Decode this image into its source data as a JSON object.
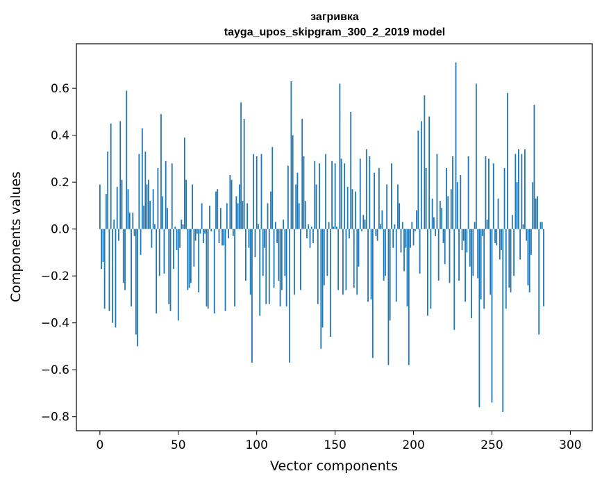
{
  "chart_data": {
    "type": "bar",
    "title_line1": "загривка",
    "title_line2": "tayga_upos_skipgram_300_2_2019 model",
    "xlabel": "Vector components",
    "ylabel": "Components values",
    "xlim": [
      -15,
      314
    ],
    "ylim": [
      -0.86,
      0.79
    ],
    "x_ticks": [
      0,
      50,
      100,
      150,
      200,
      250,
      300
    ],
    "x_tick_labels": [
      "0",
      "50",
      "100",
      "150",
      "200",
      "250",
      "300"
    ],
    "y_ticks": [
      -0.8,
      -0.6,
      -0.4,
      -0.2,
      0.0,
      0.2,
      0.4,
      0.6
    ],
    "y_tick_labels": [
      "−0.8",
      "−0.6",
      "−0.4",
      "−0.2",
      "0.0",
      "0.2",
      "0.4",
      "0.6"
    ],
    "bar_color": "#1f77b4",
    "values": [
      0.19,
      -0.17,
      -0.14,
      -0.34,
      0.15,
      0.33,
      -0.35,
      0.45,
      -0.4,
      0.04,
      -0.42,
      0.18,
      -0.05,
      0.46,
      0.21,
      -0.23,
      -0.26,
      0.59,
      0.17,
      0.07,
      -0.33,
      0.07,
      -0.03,
      -0.45,
      -0.5,
      0.32,
      -0.11,
      0.43,
      0.1,
      0.33,
      0.19,
      0.21,
      0.12,
      -0.08,
      0.17,
      0.02,
      -0.36,
      0.26,
      -0.2,
      0.49,
      0.14,
      -0.19,
      0.29,
      0.09,
      -0.32,
      -0.35,
      0.28,
      -0.17,
      0.01,
      -0.09,
      -0.39,
      -0.08,
      0.04,
      0.02,
      0.39,
      0.21,
      -0.26,
      -0.25,
      -0.23,
      0.19,
      -0.16,
      -0.05,
      -0.02,
      -0.27,
      -0.02,
      0.11,
      -0.06,
      -0.02,
      -0.33,
      -0.34,
      0.1,
      -0.01,
      0.0,
      -0.36,
      0.16,
      0.17,
      -0.06,
      0.09,
      -0.07,
      -0.07,
      -0.35,
      0.11,
      -0.04,
      0.23,
      0.21,
      -0.03,
      -0.33,
      0.14,
      0.11,
      0.19,
      0.54,
      0.12,
      0.47,
      -0.22,
      0.11,
      -0.08,
      -0.28,
      -0.57,
      0.32,
      -0.12,
      0.31,
      0.02,
      -0.37,
      0.32,
      -0.2,
      -0.08,
      -0.32,
      0.11,
      -0.32,
      0.16,
      0.35,
      -0.25,
      0.03,
      -0.06,
      -0.22,
      -0.33,
      -0.26,
      0.04,
      -0.2,
      -0.33,
      0.27,
      -0.57,
      0.63,
      0.4,
      -0.28,
      0.19,
      0.24,
      0.11,
      -0.26,
      0.47,
      0.31,
      0.12,
      -0.04,
      0.02,
      -0.08,
      0.01,
      -0.06,
      0.29,
      0.19,
      -0.32,
      0.28,
      -0.51,
      -0.42,
      -0.24,
      0.32,
      -0.2,
      0.03,
      -0.46,
      0.29,
      0.01,
      0.28,
      0.01,
      -0.26,
      0.62,
      0.3,
      -0.28,
      0.28,
      -0.26,
      0.18,
      -0.04,
      0.5,
      0.17,
      -0.25,
      0.16,
      -0.28,
      -0.16,
      0.3,
      -0.01,
      0.06,
      0.04,
      0.34,
      -0.31,
      0.31,
      -0.3,
      -0.55,
      0.24,
      -0.03,
      -0.05,
      0.26,
      0.02,
      0.08,
      -0.22,
      -0.2,
      0.19,
      -0.58,
      -0.39,
      0.28,
      -0.08,
      0.02,
      -0.31,
      0.19,
      0.11,
      -0.1,
      0.03,
      -0.18,
      -0.08,
      -0.33,
      -0.58,
      -0.08,
      0.03,
      -0.07,
      -0.01,
      0.08,
      0.42,
      -0.19,
      0.46,
      0.0,
      0.57,
      0.26,
      -0.37,
      0.48,
      -0.34,
      0.13,
      0.05,
      -0.03,
      0.32,
      -0.22,
      0.12,
      0.09,
      -0.06,
      -0.15,
      0.26,
      0.14,
      -0.23,
      0.17,
      0.31,
      -0.43,
      0.71,
      0.2,
      -0.22,
      0.23,
      -0.09,
      -0.05,
      -0.31,
      -0.1,
      0.31,
      -0.16,
      -0.38,
      -0.2,
      0.03,
      0.62,
      -0.21,
      -0.76,
      -0.3,
      -0.03,
      -0.34,
      0.31,
      0.04,
      0.3,
      -0.28,
      -0.74,
      0.28,
      -0.06,
      -0.07,
      0.13,
      -0.13,
      -0.09,
      -0.78,
      0.26,
      -0.34,
      0.58,
      -0.25,
      -0.27,
      0.06,
      -0.2,
      0.32,
      0.2,
      0.34,
      -0.13,
      0.32,
      0.02,
      0.34,
      -0.05,
      -0.24,
      -0.27,
      -0.11,
      0.2,
      0.53,
      0.13,
      0.14,
      -0.45,
      0.03,
      0.03,
      -0.33
    ]
  }
}
